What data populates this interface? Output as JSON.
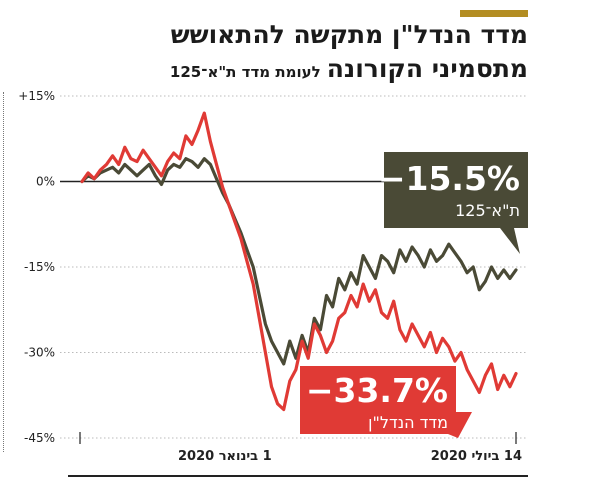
{
  "header": {
    "title_line1": "מדד הנדל\"ן מתקשה להתאושש",
    "title_line2": "מתסמיני הקורונה",
    "subtitle": "לעומת מדד ת\"א־125"
  },
  "colors": {
    "accent": "#b38d22",
    "ta125": "#4a4a36",
    "real_estate": "#e03a35",
    "zero_line": "#222222",
    "grid": "#bbbbbb"
  },
  "chart_data": {
    "type": "line",
    "title": "מדד הנדל\"ן מתקשה להתאושש מתסמיני הקורונה",
    "subtitle": "לעומת מדד ת\"א־125",
    "ylim": [
      -45,
      15
    ],
    "yticks": [
      15,
      0,
      -15,
      -30,
      -45
    ],
    "ytick_labels": [
      "+15%",
      "0%",
      "-15%",
      "-30%",
      "-45%"
    ],
    "xtick_labels": [
      "1 בינואר 2020",
      "14 ביולי 2020"
    ],
    "x_range": [
      "2020-01-01",
      "2020-07-14"
    ],
    "grid": true,
    "series": [
      {
        "name": "ת\"א־125",
        "color": "#4a4a36",
        "final_value_label": "−15.5%",
        "values": [
          0,
          1.0,
          0.5,
          1.5,
          2.0,
          2.5,
          1.5,
          3.0,
          2.0,
          1.0,
          2.0,
          3.0,
          1.0,
          -0.5,
          2.0,
          3.0,
          2.5,
          4.0,
          3.5,
          2.5,
          4.0,
          3.0,
          0.5,
          -2.0,
          -4.0,
          -6.5,
          -9.0,
          -12.0,
          -15.0,
          -20.0,
          -25.0,
          -28.0,
          -30.0,
          -32.0,
          -28.0,
          -31.0,
          -27.0,
          -30.0,
          -24.0,
          -26.0,
          -20.0,
          -22.0,
          -17.0,
          -19.0,
          -16.0,
          -18.0,
          -13.0,
          -15.0,
          -17.0,
          -13.0,
          -14.0,
          -16.0,
          -12.0,
          -14.0,
          -11.5,
          -13.0,
          -15.0,
          -12.0,
          -14.0,
          -13.0,
          -11.0,
          -12.5,
          -14.0,
          -16.0,
          -15.0,
          -19.0,
          -17.5,
          -15.0,
          -17.0,
          -15.5,
          -17.0,
          -15.5
        ]
      },
      {
        "name": "מדד הנדל\"ן",
        "color": "#e03a35",
        "final_value_label": "−33.7%",
        "values": [
          0,
          1.5,
          0.5,
          2.0,
          3.0,
          4.5,
          3.0,
          6.0,
          4.0,
          3.5,
          5.5,
          4.0,
          2.5,
          1.0,
          3.5,
          5.0,
          4.0,
          8.0,
          6.5,
          9.0,
          12.0,
          7.0,
          3.0,
          -1.0,
          -4.0,
          -7.0,
          -10.0,
          -14.0,
          -18.0,
          -24.0,
          -30.0,
          -36.0,
          -39.0,
          -40.0,
          -35.0,
          -33.0,
          -28.0,
          -31.0,
          -25.0,
          -27.0,
          -30.0,
          -28.0,
          -24.0,
          -23.0,
          -20.0,
          -22.0,
          -18.0,
          -21.0,
          -19.0,
          -23.0,
          -24.0,
          -21.0,
          -26.0,
          -28.0,
          -25.0,
          -27.0,
          -29.0,
          -26.5,
          -30.0,
          -27.5,
          -29.0,
          -31.5,
          -30.0,
          -33.0,
          -35.0,
          -37.0,
          -34.0,
          -32.0,
          -36.5,
          -34.0,
          -36.0,
          -33.7
        ]
      }
    ]
  }
}
